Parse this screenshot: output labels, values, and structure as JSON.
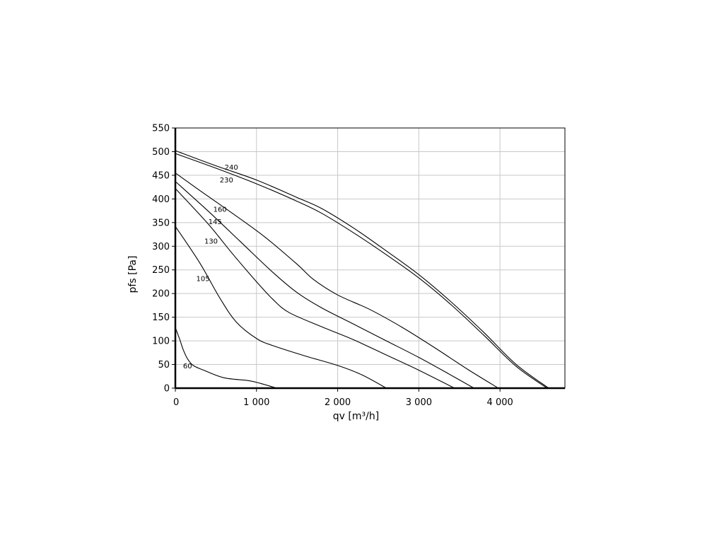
{
  "chart_data": {
    "type": "line",
    "xlabel": "qv [m³/h]",
    "ylabel": "pfs [Pa]",
    "xlim": [
      0,
      4800
    ],
    "ylim": [
      0,
      550
    ],
    "xticks": [
      0,
      1000,
      2000,
      3000,
      4000
    ],
    "xtick_labels": [
      "0",
      "1 000",
      "2 000",
      "3 000",
      "4 000"
    ],
    "yticks": [
      0,
      50,
      100,
      150,
      200,
      250,
      300,
      350,
      400,
      450,
      500,
      550
    ],
    "ytick_labels": [
      "0",
      "50",
      "100",
      "150",
      "200",
      "250",
      "300",
      "350",
      "400",
      "450",
      "500",
      "550"
    ],
    "grid": true,
    "series": [
      {
        "name": "240",
        "label_at": [
          690,
          467
        ],
        "points": [
          [
            0,
            502
          ],
          [
            500,
            470
          ],
          [
            1000,
            440
          ],
          [
            1500,
            403
          ],
          [
            1800,
            380
          ],
          [
            2200,
            338
          ],
          [
            2600,
            290
          ],
          [
            3000,
            240
          ],
          [
            3400,
            182
          ],
          [
            3800,
            118
          ],
          [
            4200,
            50
          ],
          [
            4600,
            0
          ]
        ]
      },
      {
        "name": "230",
        "label_at": [
          630,
          440
        ],
        "points": [
          [
            0,
            496
          ],
          [
            500,
            465
          ],
          [
            1000,
            432
          ],
          [
            1500,
            395
          ],
          [
            1800,
            370
          ],
          [
            2200,
            328
          ],
          [
            2600,
            282
          ],
          [
            3000,
            233
          ],
          [
            3400,
            176
          ],
          [
            3800,
            112
          ],
          [
            4200,
            46
          ],
          [
            4580,
            0
          ]
        ]
      },
      {
        "name": "160",
        "label_at": [
          550,
          378
        ],
        "points": [
          [
            0,
            455
          ],
          [
            300,
            418
          ],
          [
            700,
            370
          ],
          [
            1100,
            320
          ],
          [
            1500,
            262
          ],
          [
            1700,
            230
          ],
          [
            2000,
            197
          ],
          [
            2400,
            166
          ],
          [
            2800,
            128
          ],
          [
            3200,
            85
          ],
          [
            3600,
            40
          ],
          [
            3980,
            0
          ]
        ]
      },
      {
        "name": "145",
        "label_at": [
          490,
          352
        ],
        "points": [
          [
            0,
            437
          ],
          [
            400,
            375
          ],
          [
            800,
            310
          ],
          [
            1200,
            245
          ],
          [
            1500,
            202
          ],
          [
            1800,
            170
          ],
          [
            2200,
            135
          ],
          [
            2600,
            100
          ],
          [
            3000,
            65
          ],
          [
            3350,
            32
          ],
          [
            3680,
            0
          ]
        ]
      },
      {
        "name": "130",
        "label_at": [
          440,
          311
        ],
        "points": [
          [
            0,
            422
          ],
          [
            400,
            348
          ],
          [
            700,
            285
          ],
          [
            1000,
            225
          ],
          [
            1200,
            188
          ],
          [
            1400,
            160
          ],
          [
            1800,
            130
          ],
          [
            2200,
            102
          ],
          [
            2600,
            70
          ],
          [
            3000,
            38
          ],
          [
            3440,
            0
          ]
        ]
      },
      {
        "name": "105",
        "label_at": [
          340,
          232
        ],
        "points": [
          [
            0,
            342
          ],
          [
            300,
            265
          ],
          [
            550,
            190
          ],
          [
            750,
            140
          ],
          [
            1000,
            105
          ],
          [
            1200,
            90
          ],
          [
            1600,
            68
          ],
          [
            2000,
            48
          ],
          [
            2300,
            28
          ],
          [
            2600,
            0
          ]
        ]
      },
      {
        "name": "60",
        "label_at": [
          150,
          47
        ],
        "points": [
          [
            0,
            128
          ],
          [
            50,
            105
          ],
          [
            100,
            80
          ],
          [
            150,
            62
          ],
          [
            220,
            48
          ],
          [
            350,
            38
          ],
          [
            600,
            22
          ],
          [
            900,
            16
          ],
          [
            1050,
            10
          ],
          [
            1250,
            0
          ]
        ]
      }
    ]
  }
}
